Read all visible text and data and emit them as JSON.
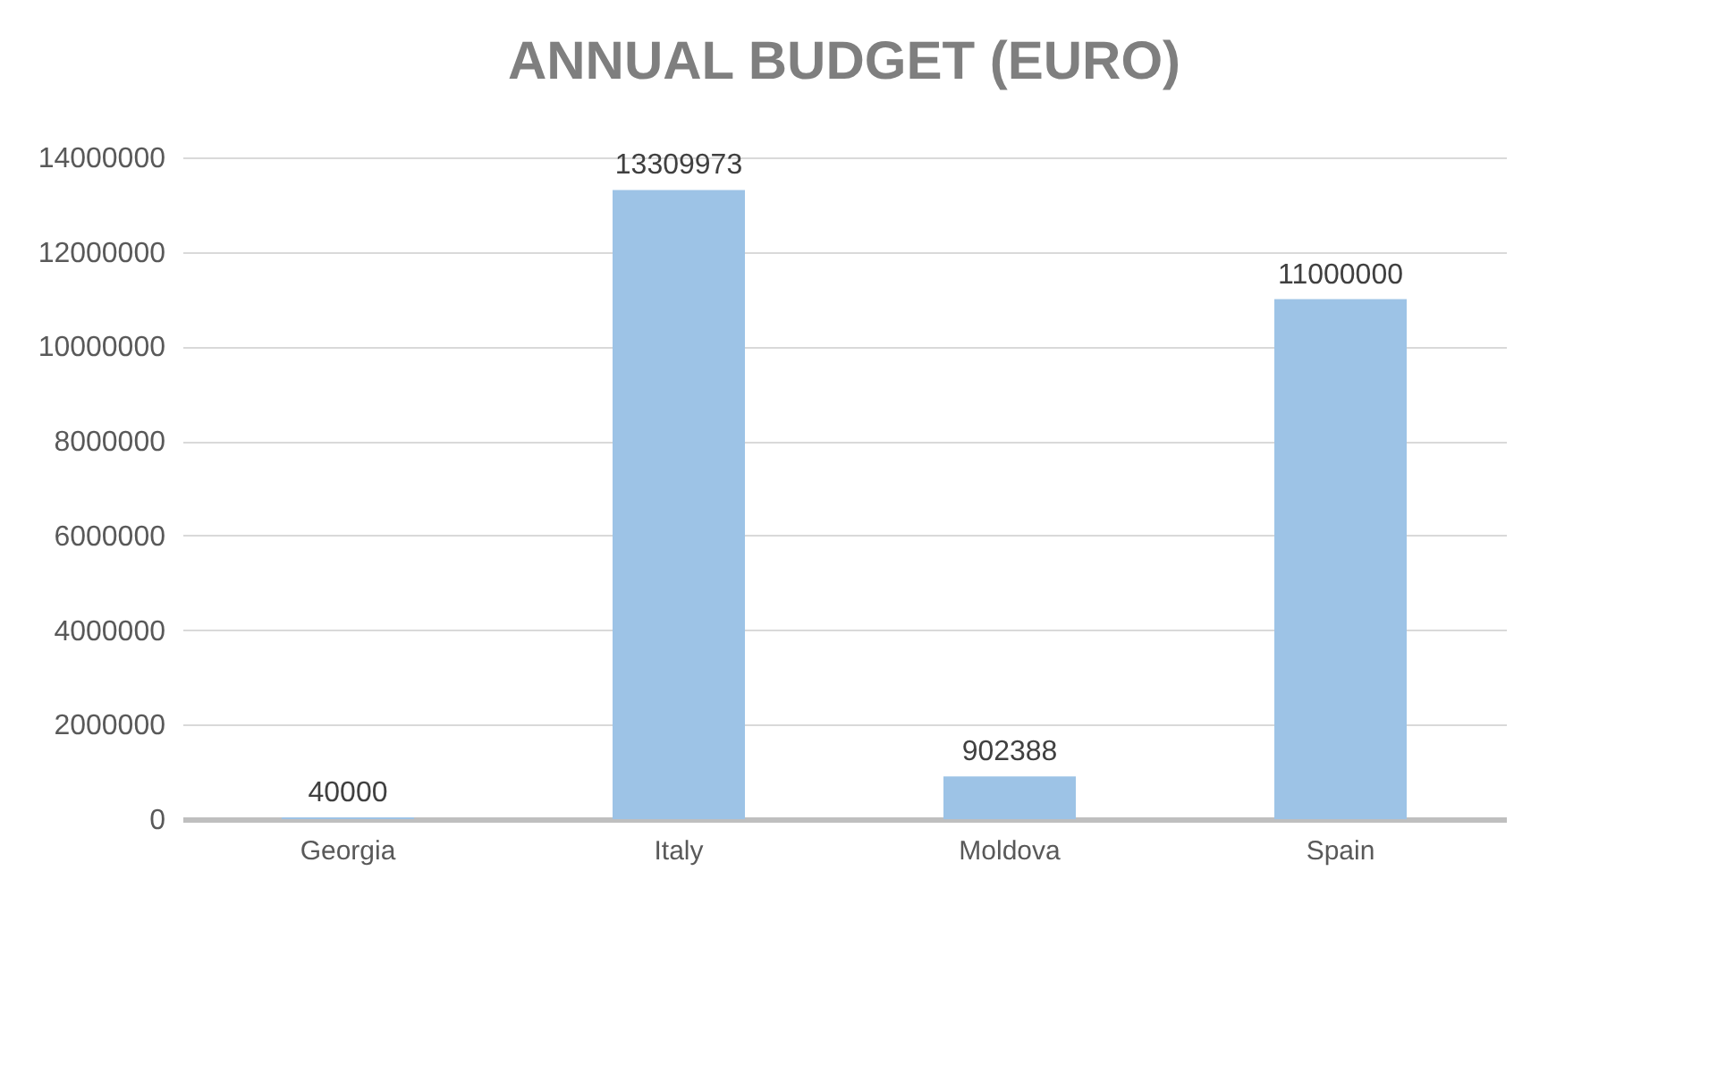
{
  "chart_data": {
    "type": "bar",
    "title": "ANNUAL BUDGET (EURO)",
    "categories": [
      "Georgia",
      "Italy",
      "Moldova",
      "Spain"
    ],
    "values": [
      40000,
      13309973,
      902388,
      11000000
    ],
    "color": "#9dc3e6",
    "ylim": [
      0,
      14000000
    ],
    "yticks": [
      0,
      2000000,
      4000000,
      6000000,
      8000000,
      10000000,
      12000000,
      14000000
    ],
    "grid": "y",
    "data_labels": true
  }
}
